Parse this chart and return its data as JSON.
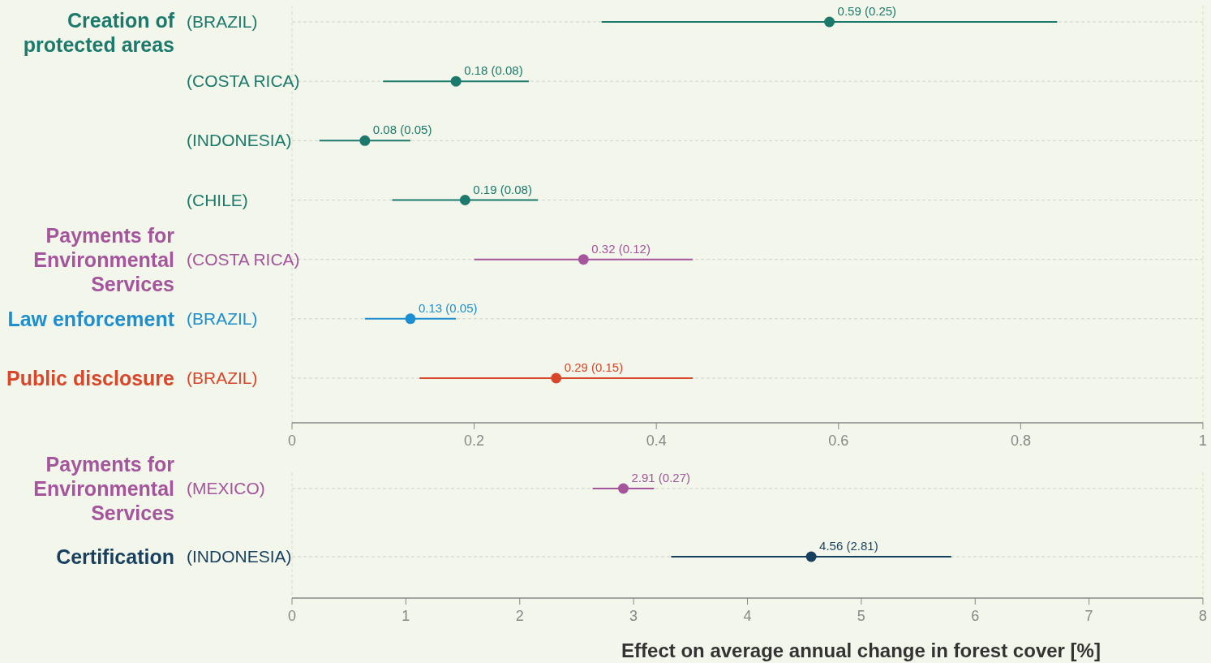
{
  "chart_data": [
    {
      "type": "scatter",
      "orientation": "horizontal",
      "categories": [
        "(BRAZIL)",
        "(COSTA RICA)",
        "(INDONESIA)",
        "(CHILE)",
        "(COSTA RICA)",
        "(BRAZIL)",
        "(BRAZIL)"
      ],
      "xlim": [
        0,
        1
      ],
      "xticks": [
        0,
        0.2,
        0.4,
        0.6,
        0.8,
        1
      ],
      "grid": "y",
      "marker": "circle",
      "series": [
        {
          "name": "Creation of protected areas",
          "color": "#1b7a6c",
          "values": [
            0.59,
            0.18,
            0.08,
            0.19,
            null,
            null,
            null
          ],
          "errors": [
            0.25,
            0.08,
            0.05,
            0.08,
            null,
            null,
            null
          ],
          "value_labels": [
            "0.59 (0.25)",
            "0.18 (0.08)",
            "0.08 (0.05)",
            "0.19 (0.08)",
            null,
            null,
            null
          ]
        },
        {
          "name": "Payments for Environmental Services",
          "color": "#a4559c",
          "values": [
            null,
            null,
            null,
            null,
            0.32,
            null,
            null
          ],
          "errors": [
            null,
            null,
            null,
            null,
            0.12,
            null,
            null
          ],
          "value_labels": [
            null,
            null,
            null,
            null,
            "0.32 (0.12)",
            null,
            null
          ]
        },
        {
          "name": "Law enforcement",
          "color": "#1d8fd0",
          "values": [
            null,
            null,
            null,
            null,
            null,
            0.13,
            null
          ],
          "errors": [
            null,
            null,
            null,
            null,
            null,
            0.05,
            null
          ],
          "value_labels": [
            null,
            null,
            null,
            null,
            null,
            "0.13 (0.05)",
            null
          ]
        },
        {
          "name": "Public disclosure",
          "color": "#d9472b",
          "values": [
            null,
            null,
            null,
            null,
            null,
            null,
            0.29
          ],
          "errors": [
            null,
            null,
            null,
            null,
            null,
            null,
            0.15
          ],
          "value_labels": [
            null,
            null,
            null,
            null,
            null,
            null,
            "0.29 (0.15)"
          ]
        }
      ]
    },
    {
      "type": "scatter",
      "orientation": "horizontal",
      "categories": [
        "(MEXICO)",
        "(INDONESIA)"
      ],
      "xlim": [
        0,
        8
      ],
      "xticks": [
        0,
        1,
        2,
        3,
        4,
        5,
        6,
        7,
        8
      ],
      "grid": "y",
      "marker": "circle",
      "xlabel": "Effect on average annual change in forest cover [%]",
      "series": [
        {
          "name": "Payments for Environmental Services",
          "color": "#a4559c",
          "values": [
            2.91,
            null
          ],
          "errors": [
            0.27,
            null
          ],
          "value_labels": [
            "2.91 (0.27)",
            null
          ]
        },
        {
          "name": "Certification",
          "color": "#173f5f",
          "values": [
            null,
            4.56
          ],
          "errors": [
            null,
            1.23
          ],
          "value_labels": [
            null,
            "4.56 (2.81)"
          ]
        }
      ]
    }
  ]
}
